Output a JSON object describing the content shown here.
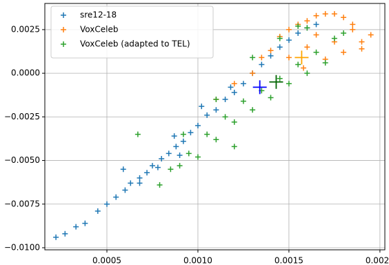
{
  "chart_data": {
    "type": "scatter",
    "xlim": [
      0.000159,
      0.002027
    ],
    "ylim": [
      -0.01012,
      0.004
    ],
    "xticks": [
      0.0005,
      {
        "value": 0.001,
        "label": "0.0010"
      },
      0.0015,
      {
        "value": 0.002,
        "label": "0.0020"
      }
    ],
    "yticks": [
      {
        "value": -0.01,
        "label": "−0.0100"
      },
      {
        "value": -0.0075,
        "label": "−0.0075"
      },
      {
        "value": -0.005,
        "label": "−0.0050"
      },
      {
        "value": -0.0025,
        "label": "−0.0025"
      },
      {
        "value": 0,
        "label": "0.0000"
      },
      0.0025
    ],
    "grid": true,
    "legend": "upper left",
    "series": [
      {
        "name": "sre12-18",
        "color": "#1f77b4",
        "x": [
          0.00022,
          0.00027,
          0.00033,
          0.00038,
          0.00045,
          0.0005,
          0.00055,
          0.0006,
          0.00063,
          0.00068,
          0.00072,
          0.00075,
          0.0008,
          0.00084,
          0.00088,
          0.00092,
          0.00096,
          0.001,
          0.00105,
          0.0011,
          0.00115,
          0.0012,
          0.00125,
          0.0013,
          0.00135,
          0.0014,
          0.00145,
          0.0015,
          0.00155,
          0.0016,
          0.00165,
          0.00059,
          0.00087,
          0.00102,
          0.0009,
          0.00118,
          0.00078,
          0.00068
        ],
        "values": [
          -0.0094,
          -0.0092,
          -0.0088,
          -0.0086,
          -0.0079,
          -0.0075,
          -0.0071,
          -0.0067,
          -0.0063,
          -0.006,
          -0.0057,
          -0.0053,
          -0.0049,
          -0.0046,
          -0.0042,
          -0.0039,
          -0.0034,
          -0.003,
          -0.0024,
          -0.0021,
          -0.0015,
          -0.0011,
          -0.0006,
          0,
          0.0005,
          0.001,
          0.0015,
          0.0019,
          0.0023,
          0.0026,
          0.0028,
          -0.0055,
          -0.0036,
          -0.0019,
          -0.0047,
          -0.0008,
          -0.0054,
          -0.0063
        ]
      },
      {
        "name": "VoxCeleb",
        "color": "#ff7f0e",
        "x": [
          0.0011,
          0.0012,
          0.0013,
          0.00135,
          0.0014,
          0.00145,
          0.0015,
          0.00155,
          0.0016,
          0.00165,
          0.0017,
          0.00175,
          0.0018,
          0.00185,
          0.00195,
          0.0019,
          0.0018,
          0.00175,
          0.0017,
          0.0016,
          0.00165,
          0.0015,
          0.00158,
          0.00185,
          0.0019
        ],
        "values": [
          -0.0015,
          -0.0006,
          0,
          0.0009,
          0.0013,
          0.0021,
          0.0025,
          0.0028,
          0.003,
          0.0033,
          0.0034,
          0.0034,
          0.0032,
          0.0025,
          0.0022,
          0.0014,
          0.0012,
          0.0018,
          0.0008,
          0.0015,
          0.0022,
          0.0009,
          0.0003,
          0.0028,
          0.0018
        ]
      },
      {
        "name": "VoxCeleb (adapted to TEL)",
        "color": "#2ca02c",
        "x": [
          0.00085,
          0.0009,
          0.00095,
          0.001,
          0.00105,
          0.0011,
          0.00115,
          0.0012,
          0.00125,
          0.0013,
          0.00135,
          0.0014,
          0.00145,
          0.0015,
          0.00155,
          0.0016,
          0.00165,
          0.0017,
          0.00175,
          0.0016,
          0.00145,
          0.0013,
          0.0011,
          0.00079,
          0.00067,
          0.00092,
          0.0012,
          0.00155,
          0.0018
        ],
        "values": [
          -0.0055,
          -0.0053,
          -0.0046,
          -0.0048,
          -0.0035,
          -0.0038,
          -0.0025,
          -0.0028,
          -0.0016,
          -0.0021,
          -0.001,
          -0.0014,
          -0.0003,
          -0.0006,
          0.0005,
          0,
          0.0012,
          0.0006,
          0.002,
          0.0026,
          0.002,
          0.0009,
          -0.0015,
          -0.0064,
          -0.0035,
          -0.0035,
          -0.0042,
          0.0027,
          0.0023
        ]
      }
    ],
    "centroids": [
      {
        "x": 0.00134,
        "y": -0.0008,
        "color": "#0000ff"
      },
      {
        "x": 0.00143,
        "y": -0.0005,
        "color": "#006400"
      },
      {
        "x": 0.00157,
        "y": 0.0009,
        "color": "#ffa500"
      }
    ]
  }
}
